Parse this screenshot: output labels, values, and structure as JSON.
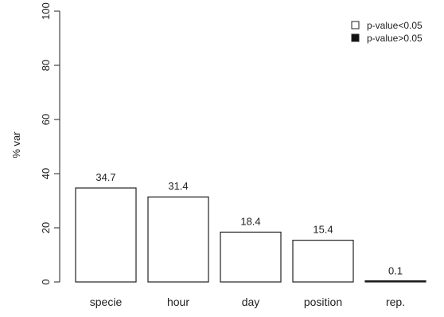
{
  "chart_data": {
    "type": "bar",
    "categories": [
      "specie",
      "hour",
      "day",
      "position",
      "rep."
    ],
    "values": [
      34.7,
      31.4,
      18.4,
      15.4,
      0.1
    ],
    "value_labels": [
      "34.7",
      "31.4",
      "18.4",
      "15.4",
      "0.1"
    ],
    "ylabel": "% var",
    "ylim": [
      0,
      100
    ],
    "yticks": [
      0,
      20,
      40,
      60,
      80,
      100
    ],
    "significant": [
      true,
      true,
      true,
      true,
      false
    ],
    "legend": {
      "position": "top-right",
      "entries": [
        {
          "label": "p-value<0.05",
          "fill": "#ffffff"
        },
        {
          "label": "p-value>0.05",
          "fill": "#111111"
        }
      ]
    },
    "grid": false
  },
  "colors": {
    "significant_fill": "#ffffff",
    "nonsignificant_fill": "#111111",
    "stroke": "#222222"
  }
}
